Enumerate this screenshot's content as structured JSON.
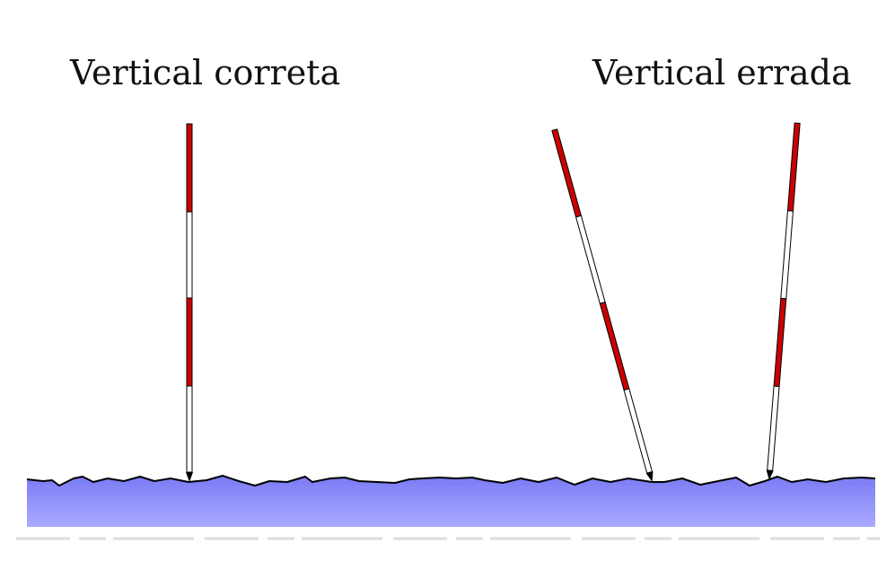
{
  "labels": {
    "correct": "Vertical correta",
    "wrong": "Vertical errada"
  },
  "poles": [
    {
      "name": "pole-vertical-correct",
      "tilt": "vertical",
      "segments": 4
    },
    {
      "name": "pole-tilted-left",
      "tilt": "leaning-left",
      "segments": 4
    },
    {
      "name": "pole-tilted-right",
      "tilt": "leaning-right",
      "segments": 4
    }
  ],
  "colors": {
    "pole_red": "#cc0000",
    "pole_white": "#ffffff",
    "ground_top": "#7a7af5",
    "ground_bottom": "#a8a8ff",
    "outline": "#000000"
  }
}
